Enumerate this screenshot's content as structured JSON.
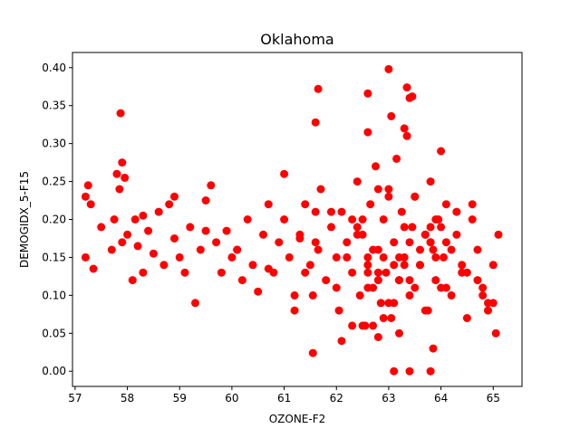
{
  "chart_data": {
    "type": "scatter",
    "title": "Oklahoma",
    "xlabel": "OZONE-F2",
    "ylabel": "DEMOGIDX_5-F15",
    "xlim": [
      56.95,
      65.55
    ],
    "ylim": [
      -0.02,
      0.42
    ],
    "xticks": [
      "57",
      "58",
      "59",
      "60",
      "61",
      "62",
      "63",
      "64",
      "65"
    ],
    "yticks": [
      "0.00",
      "0.05",
      "0.10",
      "0.15",
      "0.20",
      "0.25",
      "0.30",
      "0.35",
      "0.40"
    ],
    "grid": false,
    "legend": "none",
    "marker_color": "#ff0000",
    "x": [
      57.2,
      57.25,
      57.3,
      57.35,
      57.5,
      57.7,
      57.75,
      57.8,
      57.85,
      57.9,
      57.95,
      58.0,
      58.1,
      58.15,
      58.2,
      58.3,
      58.4,
      58.5,
      58.6,
      58.7,
      58.8,
      58.9,
      59.0,
      59.1,
      59.2,
      59.3,
      59.4,
      59.5,
      59.6,
      59.7,
      59.8,
      59.9,
      60.0,
      60.1,
      60.2,
      60.3,
      60.4,
      60.5,
      60.6,
      60.7,
      60.8,
      60.9,
      61.0,
      61.1,
      61.2,
      61.3,
      61.4,
      61.5,
      61.55,
      61.6,
      61.65,
      61.7,
      61.8,
      61.9,
      62.0,
      62.05,
      62.1,
      62.2,
      62.3,
      62.4,
      62.45,
      62.5,
      62.55,
      62.6,
      62.65,
      62.7,
      62.75,
      62.8,
      62.85,
      62.9,
      62.95,
      63.0,
      63.05,
      63.1,
      63.15,
      63.2,
      63.25,
      63.3,
      63.35,
      63.4,
      63.45,
      63.5,
      63.6,
      63.7,
      63.75,
      63.8,
      63.85,
      63.9,
      63.95,
      64.0,
      64.05,
      64.1,
      64.2,
      64.3,
      64.4,
      64.5,
      64.6,
      64.7,
      64.8,
      64.9,
      65.0,
      65.05,
      65.1,
      57.2,
      57.9,
      58.3,
      58.9,
      59.5,
      60.1,
      60.7,
      61.3,
      61.9,
      62.4,
      62.6,
      62.8,
      63.0,
      63.2,
      63.4,
      63.6,
      63.8,
      64.0,
      64.2,
      64.5,
      64.8,
      65.0,
      62.3,
      62.7,
      63.1,
      63.5,
      63.9,
      64.1,
      62.5,
      62.9,
      63.3,
      63.7,
      64.3,
      61.4,
      61.2,
      62.2,
      62.6,
      63.0,
      63.4,
      63.8,
      64.6,
      62.1,
      62.4,
      62.8,
      63.2,
      63.6,
      64.0,
      64.4,
      62.0,
      62.3,
      62.7,
      63.1,
      63.5,
      63.9,
      64.7,
      61.0,
      61.6,
      62.6,
      62.9,
      63.3,
      63.7,
      64.1,
      64.9,
      62.5,
      62.8,
      63.2,
      63.8,
      57.87,
      61.65,
      61.6,
      62.6,
      62.6,
      63.0,
      63.35,
      63.4,
      63.45,
      63.05,
      63.3,
      63.4,
      63.8,
      61.55,
      63.1,
      62.8,
      63.85
    ],
    "y": [
      0.23,
      0.245,
      0.22,
      0.135,
      0.19,
      0.16,
      0.2,
      0.26,
      0.24,
      0.17,
      0.255,
      0.18,
      0.12,
      0.2,
      0.165,
      0.13,
      0.185,
      0.155,
      0.21,
      0.14,
      0.22,
      0.175,
      0.15,
      0.13,
      0.19,
      0.09,
      0.16,
      0.225,
      0.245,
      0.17,
      0.13,
      0.185,
      0.15,
      0.16,
      0.12,
      0.2,
      0.14,
      0.105,
      0.18,
      0.22,
      0.13,
      0.17,
      0.2,
      0.15,
      0.08,
      0.18,
      0.22,
      0.14,
      0.1,
      0.21,
      0.16,
      0.24,
      0.12,
      0.19,
      0.15,
      0.08,
      0.21,
      0.17,
      0.13,
      0.25,
      0.1,
      0.18,
      0.06,
      0.14,
      0.22,
      0.11,
      0.27,
      0.16,
      0.09,
      0.2,
      0.13,
      0.24,
      0.07,
      0.17,
      0.28,
      0.12,
      0.21,
      0.15,
      0.31,
      0.1,
      0.19,
      0.23,
      0.14,
      0.18,
      0.08,
      0.25,
      0.16,
      0.12,
      0.2,
      0.29,
      0.15,
      0.22,
      0.1,
      0.18,
      0.13,
      0.07,
      0.2,
      0.16,
      0.11,
      0.08,
      0.14,
      0.05,
      0.18,
      0.15,
      0.275,
      0.205,
      0.23,
      0.185,
      0.16,
      0.135,
      0.175,
      0.21,
      0.19,
      0.15,
      0.12,
      0.23,
      0.12,
      0.17,
      0.14,
      0.19,
      0.11,
      0.16,
      0.13,
      0.1,
      0.09,
      0.06,
      0.16,
      0.14,
      0.11,
      0.2,
      0.17,
      0.06,
      0.15,
      0.19,
      0.08,
      0.21,
      0.13,
      0.1,
      0.15,
      0.11,
      0.09,
      0.12,
      0.17,
      0.22,
      0.04,
      0.18,
      0.13,
      0.05,
      0.16,
      0.19,
      0.14,
      0.11,
      0.2,
      0.06,
      0.09,
      0.23,
      0.15,
      0.12,
      0.26,
      0.17,
      0.13,
      0.07,
      0.14,
      0.18,
      0.11,
      0.09,
      0.2,
      0.24,
      0.15,
      0.17,
      0.34,
      0.372,
      0.328,
      0.366,
      0.315,
      0.398,
      0.374,
      0.36,
      0.362,
      0.336,
      0.32,
      0.0,
      0.0,
      0.024,
      0.0,
      0.045,
      0.03
    ]
  }
}
